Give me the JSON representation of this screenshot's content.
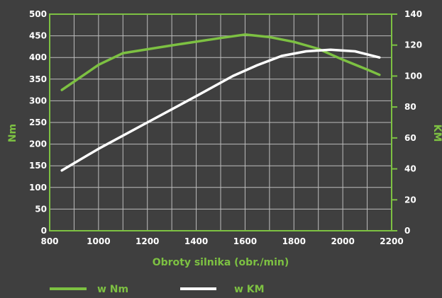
{
  "chart_data": {
    "type": "line",
    "xlabel": "Obroty silnika (obr./min)",
    "ylabel_left": "Nm",
    "ylabel_right": "KM",
    "xlim": [
      800,
      2200
    ],
    "ylim_left": [
      0,
      500
    ],
    "ylim_right": [
      0,
      140
    ],
    "x_ticks": [
      800,
      1000,
      1200,
      1400,
      1600,
      1800,
      2000,
      2200
    ],
    "y_left_ticks": [
      0,
      50,
      100,
      150,
      200,
      250,
      300,
      350,
      400,
      450,
      500
    ],
    "y_right_ticks": [
      0,
      20,
      40,
      60,
      80,
      100,
      120,
      140
    ],
    "grid": true,
    "legend_position": "bottom",
    "series": [
      {
        "name": "w Nm",
        "axis": "left",
        "color": "#7dc142",
        "x": [
          850,
          1000,
          1100,
          1300,
          1500,
          1600,
          1700,
          1800,
          1900,
          2000,
          2100,
          2150
        ],
        "y": [
          325,
          383,
          410,
          428,
          445,
          453,
          447,
          436,
          420,
          395,
          372,
          360
        ]
      },
      {
        "name": "w KM",
        "axis": "right",
        "color": "#ffffff",
        "x": [
          850,
          1000,
          1200,
          1400,
          1550,
          1650,
          1750,
          1850,
          1950,
          2050,
          2150
        ],
        "y": [
          39,
          53,
          70,
          87,
          100,
          107,
          113,
          116,
          117,
          116,
          112
        ]
      }
    ]
  }
}
